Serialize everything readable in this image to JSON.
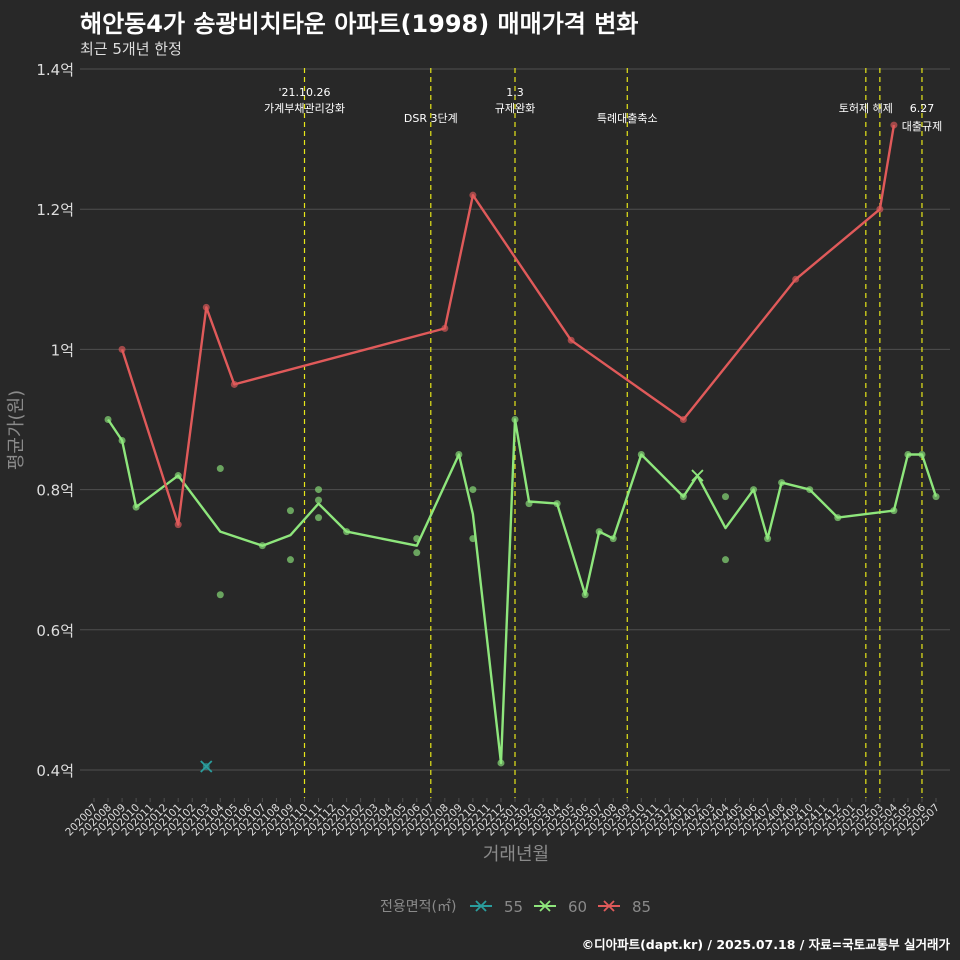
{
  "title": "해안동4가 송광비치타운 아파트(1998) 매매가격 변화",
  "subtitle": "최근 5개년 한정",
  "credit": "©디아파트(dapt.kr) / 2025.07.18 / 자료=국토교통부 실거래가",
  "colors": {
    "background": "#282828",
    "grid": "#4f4f4f",
    "axis_text": "#dddddd",
    "axis_title": "#8a8a8a",
    "event_line": "#e6e619",
    "s55": "#2a9d9d",
    "s60": "#8ee67c",
    "s85": "#e05a5a"
  },
  "chart_data": {
    "type": "line",
    "xlabel": "거래년월",
    "ylabel": "평균가(원)",
    "categories": [
      "202007",
      "202008",
      "202009",
      "202010",
      "202011",
      "202012",
      "202101",
      "202102",
      "202103",
      "202104",
      "202105",
      "202106",
      "202107",
      "202108",
      "202109",
      "202110",
      "202111",
      "202112",
      "202201",
      "202202",
      "202203",
      "202204",
      "202205",
      "202206",
      "202207",
      "202208",
      "202209",
      "202210",
      "202211",
      "202212",
      "202301",
      "202302",
      "202303",
      "202304",
      "202305",
      "202306",
      "202307",
      "202308",
      "202309",
      "202310",
      "202311",
      "202312",
      "202401",
      "202402",
      "202403",
      "202404",
      "202405",
      "202406",
      "202407",
      "202408",
      "202409",
      "202410",
      "202411",
      "202412",
      "202501",
      "202502",
      "202503",
      "202504",
      "202505",
      "202506",
      "202507"
    ],
    "ylim": [
      0.36,
      1.41
    ],
    "yticks": [
      0.4,
      0.6,
      0.8,
      1.0,
      1.2,
      1.4
    ],
    "ytick_labels": [
      "0.4억",
      "0.6억",
      "0.8억",
      "1억",
      "1.2억",
      "1.4억"
    ],
    "legend_title": "전용면적(㎡)",
    "series": [
      {
        "name": "55",
        "key": "s55",
        "line": [],
        "points": [
          [
            "202103",
            0.405
          ]
        ],
        "markers": [
          [
            "202103",
            0.405
          ]
        ]
      },
      {
        "name": "60",
        "key": "s60",
        "line": [
          [
            "202008",
            0.9
          ],
          [
            "202009",
            0.87
          ],
          [
            "202010",
            0.775
          ],
          [
            "202101",
            0.82
          ],
          [
            "202104",
            0.74
          ],
          [
            "202107",
            0.72
          ],
          [
            "202109",
            0.735
          ],
          [
            "202111",
            0.78
          ],
          [
            "202201",
            0.74
          ],
          [
            "202206",
            0.72
          ],
          [
            "202209",
            0.85
          ],
          [
            "202210",
            0.765
          ],
          [
            "202212",
            0.41
          ],
          [
            "202301",
            0.9
          ],
          [
            "202302",
            0.783
          ],
          [
            "202304",
            0.78
          ],
          [
            "202306",
            0.65
          ],
          [
            "202307",
            0.74
          ],
          [
            "202308",
            0.73
          ],
          [
            "202310",
            0.85
          ],
          [
            "202401",
            0.79
          ],
          [
            "202402",
            0.82
          ],
          [
            "202404",
            0.745
          ],
          [
            "202406",
            0.8
          ],
          [
            "202407",
            0.73
          ],
          [
            "202408",
            0.81
          ],
          [
            "202410",
            0.8
          ],
          [
            "202412",
            0.76
          ],
          [
            "202504",
            0.77
          ],
          [
            "202505",
            0.85
          ],
          [
            "202506",
            0.85
          ],
          [
            "202507",
            0.79
          ]
        ],
        "points": [
          [
            "202008",
            0.9
          ],
          [
            "202009",
            0.87
          ],
          [
            "202010",
            0.775
          ],
          [
            "202101",
            0.82
          ],
          [
            "202104",
            0.83
          ],
          [
            "202104",
            0.65
          ],
          [
            "202107",
            0.72
          ],
          [
            "202109",
            0.77
          ],
          [
            "202109",
            0.7
          ],
          [
            "202111",
            0.8
          ],
          [
            "202111",
            0.785
          ],
          [
            "202111",
            0.76
          ],
          [
            "202201",
            0.74
          ],
          [
            "202206",
            0.73
          ],
          [
            "202206",
            0.71
          ],
          [
            "202209",
            0.85
          ],
          [
            "202210",
            0.8
          ],
          [
            "202210",
            0.73
          ],
          [
            "202212",
            0.41
          ],
          [
            "202301",
            0.9
          ],
          [
            "202302",
            0.78
          ],
          [
            "202304",
            0.78
          ],
          [
            "202306",
            0.65
          ],
          [
            "202307",
            0.74
          ],
          [
            "202308",
            0.73
          ],
          [
            "202310",
            0.85
          ],
          [
            "202401",
            0.79
          ],
          [
            "202404",
            0.79
          ],
          [
            "202404",
            0.7
          ],
          [
            "202406",
            0.8
          ],
          [
            "202407",
            0.73
          ],
          [
            "202408",
            0.81
          ],
          [
            "202410",
            0.8
          ],
          [
            "202412",
            0.76
          ],
          [
            "202504",
            0.77
          ],
          [
            "202505",
            0.85
          ],
          [
            "202506",
            0.85
          ],
          [
            "202507",
            0.79
          ]
        ],
        "markers": [
          [
            "202402",
            0.82
          ]
        ]
      },
      {
        "name": "85",
        "key": "s85",
        "line": [
          [
            "202009",
            1.0
          ],
          [
            "202101",
            0.75
          ],
          [
            "202103",
            1.06
          ],
          [
            "202105",
            0.95
          ],
          [
            "202208",
            1.03
          ],
          [
            "202210",
            1.22
          ],
          [
            "202305",
            1.013
          ],
          [
            "202401",
            0.9
          ],
          [
            "202409",
            1.1
          ],
          [
            "202503",
            1.2
          ],
          [
            "202504",
            1.32
          ]
        ],
        "points": [
          [
            "202009",
            1.0
          ],
          [
            "202101",
            0.75
          ],
          [
            "202103",
            1.06
          ],
          [
            "202105",
            0.95
          ],
          [
            "202208",
            1.03
          ],
          [
            "202210",
            1.22
          ],
          [
            "202305",
            1.013
          ],
          [
            "202401",
            0.9
          ],
          [
            "202409",
            1.1
          ],
          [
            "202503",
            1.2
          ],
          [
            "202504",
            1.32
          ]
        ],
        "markers": []
      }
    ],
    "events": [
      {
        "x": "202110",
        "label_top": "'21.10.26",
        "label_bottom": "가계부채관리강화",
        "row": 1
      },
      {
        "x": "202207",
        "label_top": "",
        "label_bottom": "DSR 3단계",
        "row": 2
      },
      {
        "x": "202301",
        "label_top": "1.3",
        "label_bottom": "규제완화",
        "row": 1
      },
      {
        "x": "202309",
        "label_top": "",
        "label_bottom": "특례대출축소",
        "row": 2
      },
      {
        "x": "202502",
        "label_top": "",
        "label_bottom": "토허제 해제",
        "row": 1
      },
      {
        "x": "202503",
        "label_top": "",
        "label_bottom": "",
        "row": 1
      },
      {
        "x": "202506",
        "label_top": "6.27",
        "label_bottom": "대출규제",
        "row": 3
      }
    ]
  }
}
